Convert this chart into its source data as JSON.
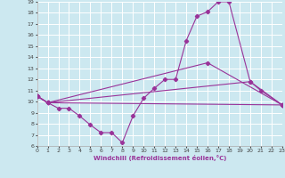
{
  "xlabel": "Windchill (Refroidissement éolien,°C)",
  "xlim": [
    0,
    23
  ],
  "ylim": [
    6,
    19
  ],
  "xticks": [
    0,
    1,
    2,
    3,
    4,
    5,
    6,
    7,
    8,
    9,
    10,
    11,
    12,
    13,
    14,
    15,
    16,
    17,
    18,
    19,
    20,
    21,
    22,
    23
  ],
  "yticks": [
    6,
    7,
    8,
    9,
    10,
    11,
    12,
    13,
    14,
    15,
    16,
    17,
    18,
    19
  ],
  "background_color": "#cce8f0",
  "grid_color": "#ffffff",
  "line_color": "#993399",
  "series": [
    {
      "x": [
        0,
        1,
        2,
        3,
        4,
        5,
        6,
        7,
        8,
        9,
        10,
        11,
        12,
        13,
        14,
        15,
        16,
        17,
        18,
        20,
        21,
        23
      ],
      "y": [
        10.5,
        9.9,
        9.4,
        9.4,
        8.7,
        7.9,
        7.2,
        7.2,
        6.3,
        8.7,
        10.3,
        11.2,
        12.0,
        12.0,
        15.5,
        17.7,
        18.1,
        19.0,
        19.0,
        11.8,
        11.0,
        9.7
      ]
    },
    {
      "x": [
        0,
        1,
        16,
        23
      ],
      "y": [
        10.5,
        9.9,
        13.5,
        9.7
      ]
    },
    {
      "x": [
        0,
        1,
        20,
        23
      ],
      "y": [
        10.5,
        9.9,
        11.8,
        9.7
      ]
    },
    {
      "x": [
        0,
        1,
        23
      ],
      "y": [
        10.5,
        9.9,
        9.7
      ]
    }
  ]
}
